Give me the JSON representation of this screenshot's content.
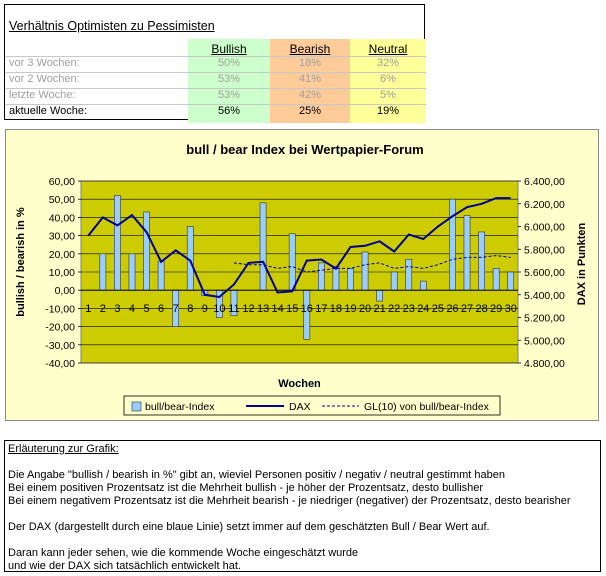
{
  "ratio_table": {
    "title": "Verhältnis Optimisten zu Pessimisten",
    "headers": {
      "bullish": "Bullish",
      "bearish": "Bearish",
      "neutral": "Neutral"
    },
    "rows": [
      {
        "label": "vor 3 Wochen:",
        "bullish": "50%",
        "bearish": "18%",
        "neutral": "32%"
      },
      {
        "label": "vor 2 Wochen:",
        "bullish": "53%",
        "bearish": "41%",
        "neutral": "6%"
      },
      {
        "label": "letzte Woche:",
        "bullish": "53%",
        "bearish": "42%",
        "neutral": "5%"
      },
      {
        "label": "aktuelle Woche:",
        "bullish": "56%",
        "bearish": "25%",
        "neutral": "19%"
      }
    ],
    "colors": {
      "bullish": "#ccffcc",
      "bearish": "#ffcc99",
      "neutral": "#ffff99"
    }
  },
  "chart_data": {
    "type": "bar",
    "title": "bull / bear Index bei Wertpapier-Forum",
    "xlabel": "Wochen",
    "ylabel": "bullish / bearish in %",
    "y2label": "DAX in Punkten",
    "categories": [
      "1",
      "2",
      "3",
      "4",
      "5",
      "6",
      "7",
      "8",
      "9",
      "10",
      "11",
      "12",
      "13",
      "14",
      "15",
      "16",
      "17",
      "18",
      "19",
      "20",
      "21",
      "22",
      "23",
      "24",
      "25",
      "26",
      "27",
      "28",
      "29",
      "30"
    ],
    "ylim": [
      -40,
      60
    ],
    "y_ticks": [
      "60,00",
      "50,00",
      "40,00",
      "30,00",
      "20,00",
      "10,00",
      "0,00",
      "-10,00",
      "-20,00",
      "-30,00",
      "-40,00"
    ],
    "y2lim": [
      4800,
      6400
    ],
    "y2_ticks": [
      "6.400,00",
      "6.200,00",
      "6.000,00",
      "5.800,00",
      "5.600,00",
      "5.400,00",
      "5.200,00",
      "5.000,00",
      "4.800,00"
    ],
    "series": [
      {
        "name": "bull/bear-Index",
        "kind": "bar",
        "color": "#99ccff",
        "values": [
          0,
          20,
          52,
          20,
          43,
          16,
          -20,
          35,
          -3,
          -15,
          -14,
          0,
          48,
          0,
          31,
          -27,
          15,
          13,
          12,
          21,
          -6,
          10,
          17,
          5,
          0,
          50,
          41,
          32,
          12,
          10
        ]
      },
      {
        "name": "DAX",
        "kind": "line",
        "axis": "y2",
        "color": "#000099",
        "values": [
          5920,
          6080,
          6010,
          6100,
          5950,
          5690,
          5790,
          5700,
          5400,
          5380,
          5490,
          5680,
          5690,
          5420,
          5430,
          5700,
          5710,
          5630,
          5820,
          5830,
          5870,
          5780,
          5930,
          5890,
          6000,
          6090,
          6170,
          6200,
          6250,
          6250
        ]
      },
      {
        "name": "GL(10) von bull/bear-Index",
        "kind": "line",
        "dashed": true,
        "color": "#000099",
        "values": [
          null,
          null,
          null,
          null,
          null,
          null,
          null,
          null,
          null,
          null,
          15,
          14,
          14,
          12,
          13,
          10,
          11,
          12,
          12,
          14,
          15,
          12,
          13,
          12,
          14,
          17,
          18,
          18,
          19,
          18
        ]
      }
    ],
    "legend": {
      "position": "bottom"
    },
    "plot_background": "#cccc00",
    "background": "#ffffcc"
  },
  "explanation": {
    "heading": "Erläuterung zur Grafik:",
    "lines": [
      "Die Angabe \"bullish / bearish in %\" gibt an, wieviel Personen positiv / negativ / neutral gestimmt haben",
      "Bei einem positiven Prozentsatz ist die Mehrheit bullish - je höher der Prozentsatz, desto bullisher",
      "Bei einem negativem Prozentsatz ist die Mehrheit bearish - je niedriger (negativer) der Prozentsatz, desto bearisher",
      "Der DAX (dargestellt durch eine blaue Linie) setzt immer auf dem geschätzten Bull / Bear Wert auf.",
      "Daran kann jeder sehen, wie die kommende Woche eingeschätzt wurde",
      "und wie der DAX sich tatsächlich entwickelt hat."
    ]
  }
}
